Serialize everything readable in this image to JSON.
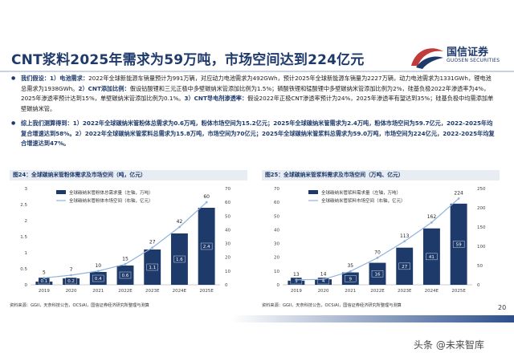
{
  "header": {
    "title": "CNT浆料2025年需求为59万吨，市场空间达到224亿元",
    "logo_cn": "国信证券",
    "logo_en": "GUOSEN SECURITIES",
    "brand_color": "#c23b3b",
    "navy_color": "#1e3a6b"
  },
  "bullets": {
    "b1_head": "我们假设：1）电池需求：",
    "b1_text1": "2022年全球新能源车销量预计为991万辆，对应动力电池需求为492GWh，预计2025年全球新能源车销量为2227万辆，动力电池需求为1331GWh，锂电池总需求为1938GWh。",
    "b1_head2": "2）CNT添加比例：",
    "b1_text2": "假设钴酸锂和三元正极中多壁碳纳米管添加比例为1.5%；磷酸铁锂和锰酸锂中多壁碳纳米管添加比例为2%，硅基负极2022年渗透率为4%，2025年渗透率预计达到15%，单壁碳纳米管添加比例为0.1%。",
    "b1_head3": "3）CNT导电剂渗透率：",
    "b1_text3": "假设2022年正极CNT渗透率预计为24%，2025年渗透率有望达到35%；硅基负极中均需添加单壁碳纳米管。",
    "b2_text": "综上我们测算得到：1）2022年全球碳纳米管粉体总需求为0.6万吨，粉体市场空间为15.2亿元；2025年全球碳纳米管需求为2.4万吨，粉体市场空间为59.7亿元，2022-2025年均复合增速达到58%。2）2022年全球碳纳米管浆料总需求为15.8万吨，市场空间为70亿元；2025年全球碳纳米管浆料总需求为59.0万吨，市场空间为224亿元，2022-2025年均复合增速达到47%。"
  },
  "chart_data": [
    {
      "type": "bar",
      "title": "图24：全球碳纳米管粉体需求及市场空间（吨，亿元）",
      "categories": [
        "2019",
        "2020",
        "2021",
        "2022E",
        "2023E",
        "2024E",
        "2025E"
      ],
      "series": [
        {
          "name": "全球碳纳米管粉体总需求量（左轴，万吨）",
          "kind": "bar",
          "axis": "left",
          "values": [
            0.1,
            0.2,
            0.4,
            0.6,
            1.1,
            1.6,
            2.4
          ]
        },
        {
          "name": "全球碳纳米管粉体市场空间（右轴，亿元）",
          "kind": "line",
          "axis": "right",
          "values": [
            5,
            7,
            10,
            15,
            27,
            42,
            60
          ]
        }
      ],
      "bar_labels": [
        "0.1",
        "0.2",
        "0.4",
        "0.6",
        "1.1",
        "1.6",
        "2.4"
      ],
      "line_labels": [
        "5",
        "7",
        "10",
        "15",
        "27",
        "42",
        "60"
      ],
      "yticks_left": [
        "0",
        "0.5",
        "1",
        "1.5",
        "2",
        "2.5",
        "3"
      ],
      "yticks_right": [
        "0",
        "10",
        "20",
        "30",
        "40",
        "50",
        "60",
        "70"
      ],
      "ylim_left": [
        0,
        3
      ],
      "ylim_right": [
        0,
        70
      ],
      "legend": "top-left",
      "source": "资料来源：GGII，天奈科技公告，OCSiAl，国信证券经济研究所整理与测算"
    },
    {
      "type": "bar",
      "title": "图25：全球碳纳米管浆料需求及市场空间（万吨、亿元）",
      "categories": [
        "2019",
        "2020",
        "2021",
        "2022E",
        "2023E",
        "2024E",
        "2025E"
      ],
      "series": [
        {
          "name": "全球碳纳米管浆料需求量（左轴，万吨）",
          "kind": "bar",
          "axis": "left",
          "values": [
            3,
            4,
            9,
            16,
            27,
            41,
            59
          ]
        },
        {
          "name": "全球碳纳米管浆料市场空间（右轴，亿元）",
          "kind": "line",
          "axis": "right",
          "values": [
            13,
            14,
            35,
            70,
            113,
            162,
            224
          ]
        }
      ],
      "bar_labels": [
        "3",
        "4",
        "9",
        "16",
        "27",
        "41",
        "59"
      ],
      "line_labels": [
        "13",
        "14",
        "35",
        "70",
        "113",
        "162",
        "224"
      ],
      "yticks_left": [
        "0",
        "10",
        "20",
        "30",
        "40",
        "50",
        "60",
        "70"
      ],
      "yticks_right": [
        "0",
        "50",
        "100",
        "150",
        "200",
        "250"
      ],
      "ylim_left": [
        0,
        70
      ],
      "ylim_right": [
        0,
        250
      ],
      "legend": "top-left",
      "source": "资料来源：GGII，天奈科技公告，OCSiAl，国信证券经济研究所整理与测算"
    }
  ],
  "footer": {
    "page_number": "20",
    "watermark": "头条 @未来智库"
  }
}
